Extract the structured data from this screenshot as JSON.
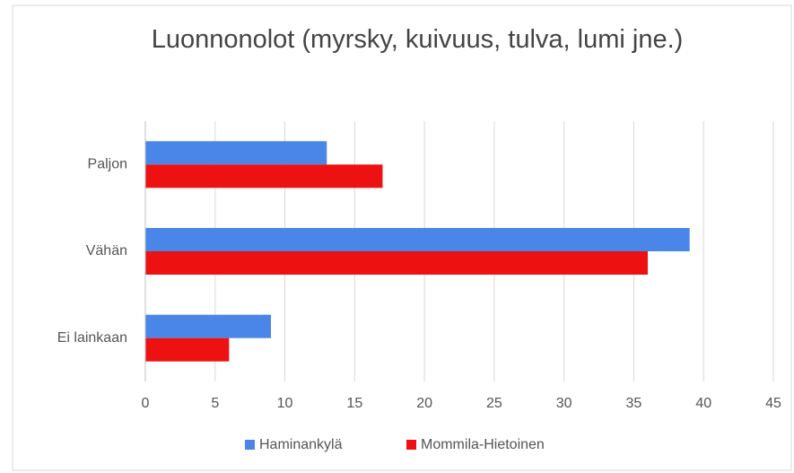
{
  "chart_data": {
    "type": "hbar",
    "title": "Luonnonolot  (myrsky, kuivuus, tulva, lumi jne.)",
    "categories": [
      "Paljon",
      "Vähän",
      "Ei lainkaan"
    ],
    "series": [
      {
        "name": "Haminankylä",
        "color": "#4a86e8",
        "values": [
          13,
          39,
          9
        ]
      },
      {
        "name": "Mommila-Hietoinen",
        "color": "#ee1111",
        "values": [
          17,
          36,
          6
        ]
      }
    ],
    "xlim": [
      0,
      45
    ],
    "xticks": [
      0,
      5,
      10,
      15,
      20,
      25,
      30,
      35,
      40,
      45
    ],
    "grid": true,
    "legend": "bottom"
  }
}
